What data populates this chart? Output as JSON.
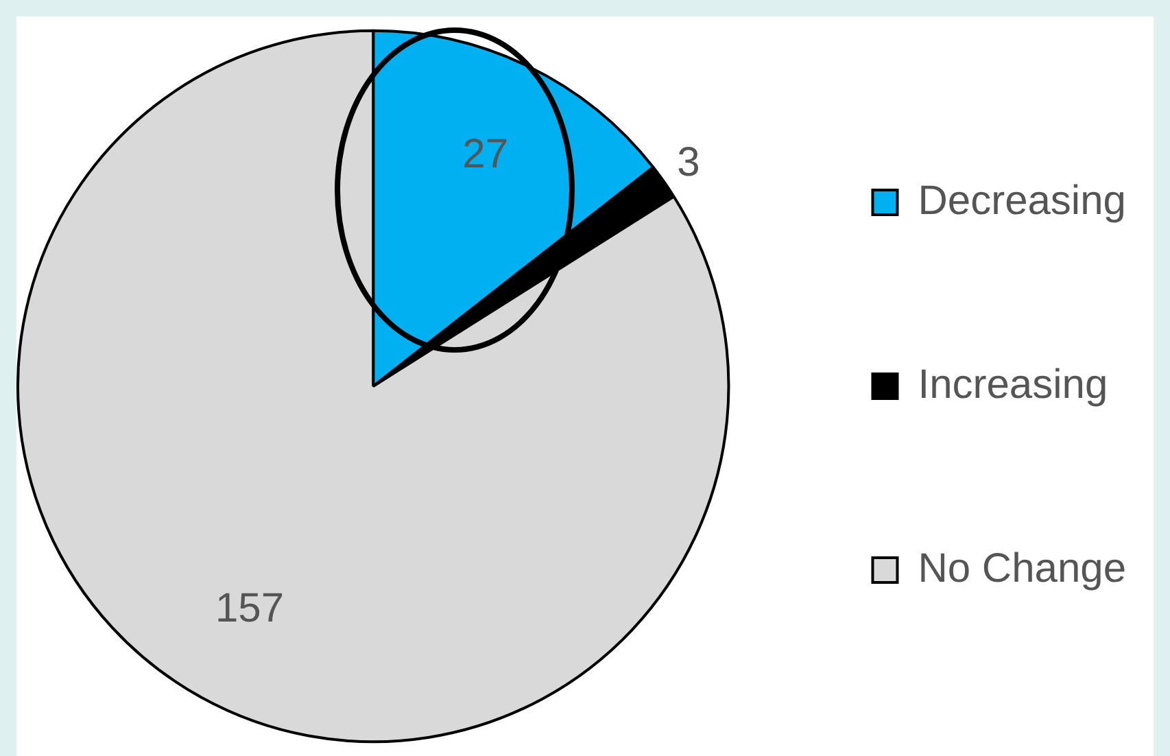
{
  "chart_data": {
    "type": "pie",
    "categories": [
      "Decreasing",
      "Increasing",
      "No Change"
    ],
    "values": [
      27,
      3,
      157
    ],
    "colors": [
      "#00b0f0",
      "#000000",
      "#d9d9d9"
    ],
    "data_labels": true,
    "legend": "right"
  }
}
